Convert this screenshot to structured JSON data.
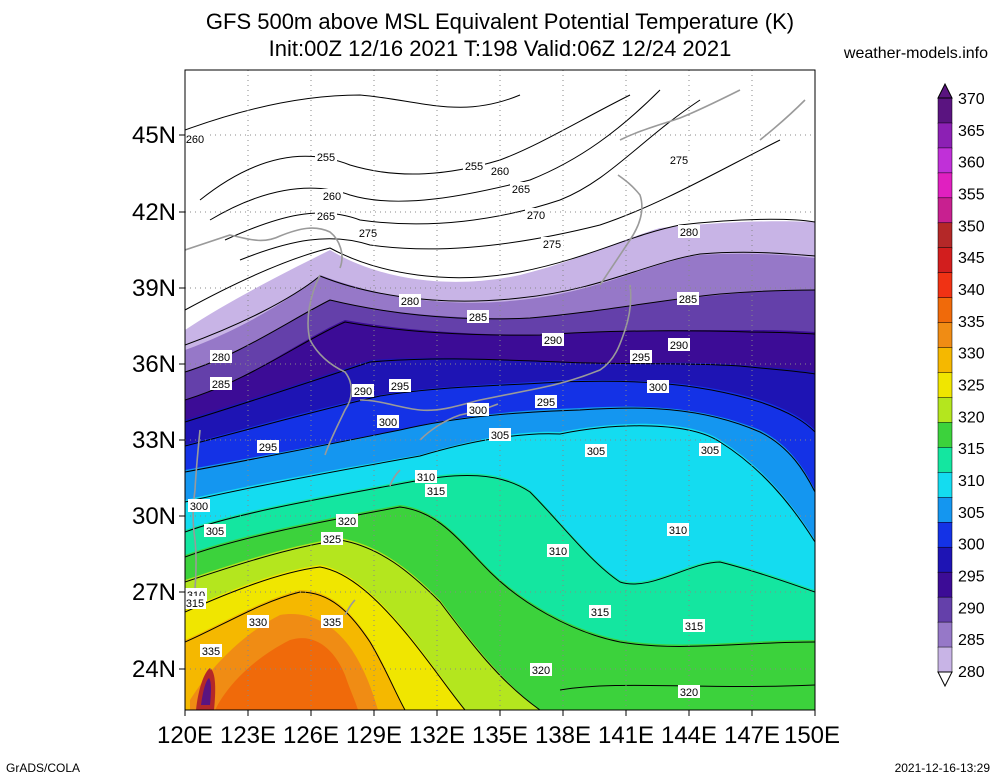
{
  "title": {
    "line1": "GFS 500m above MSL Equivalent Potential Temperature (K)",
    "line2": "Init:00Z 12/16 2021 T:198 Valid:06Z 12/24 2021"
  },
  "source": "weather-models.info",
  "footer": {
    "left": "GrADS/COLA",
    "right": "2021-12-16-13:29"
  },
  "axes": {
    "lat_ticks": [
      "45N",
      "42N",
      "39N",
      "36N",
      "33N",
      "30N",
      "27N",
      "24N"
    ],
    "lon_ticks": [
      "120E",
      "123E",
      "126E",
      "129E",
      "132E",
      "135E",
      "138E",
      "141E",
      "144E",
      "147E",
      "150E"
    ]
  },
  "colorbar": {
    "labels": [
      "370",
      "365",
      "360",
      "355",
      "350",
      "345",
      "340",
      "335",
      "330",
      "325",
      "320",
      "315",
      "310",
      "305",
      "300",
      "295",
      "290",
      "285",
      "280"
    ],
    "colors": [
      "#5a1480",
      "#8c20b4",
      "#c030d8",
      "#e020c0",
      "#c82090",
      "#b42828",
      "#d21e1e",
      "#f03214",
      "#f06a0a",
      "#f08c14",
      "#f5b800",
      "#f0e600",
      "#b4e61e",
      "#3cd23c",
      "#14e6a0",
      "#14dcf0",
      "#1496f0",
      "#1432e6",
      "#1e14b4",
      "#3c0c96",
      "#6440aa",
      "#9678c8",
      "#c8b4e6"
    ]
  },
  "contour_labels": [
    {
      "v": "260"
    },
    {
      "v": "255"
    },
    {
      "v": "255"
    },
    {
      "v": "260"
    },
    {
      "v": "260"
    },
    {
      "v": "265"
    },
    {
      "v": "265"
    },
    {
      "v": "275"
    },
    {
      "v": "270"
    },
    {
      "v": "275"
    },
    {
      "v": "275"
    },
    {
      "v": "280"
    },
    {
      "v": "280"
    },
    {
      "v": "285"
    },
    {
      "v": "285"
    },
    {
      "v": "290"
    },
    {
      "v": "290"
    },
    {
      "v": "280"
    },
    {
      "v": "285"
    },
    {
      "v": "290"
    },
    {
      "v": "295"
    },
    {
      "v": "295"
    },
    {
      "v": "300"
    },
    {
      "v": "300"
    },
    {
      "v": "295"
    },
    {
      "v": "300"
    },
    {
      "v": "305"
    },
    {
      "v": "305"
    },
    {
      "v": "305"
    },
    {
      "v": "295"
    },
    {
      "v": "310"
    },
    {
      "v": "315"
    },
    {
      "v": "300"
    },
    {
      "v": "305"
    },
    {
      "v": "320"
    },
    {
      "v": "325"
    },
    {
      "v": "310"
    },
    {
      "v": "310"
    },
    {
      "v": "310"
    },
    {
      "v": "315"
    },
    {
      "v": "315"
    },
    {
      "v": "315"
    },
    {
      "v": "330"
    },
    {
      "v": "335"
    },
    {
      "v": "335"
    },
    {
      "v": "320"
    },
    {
      "v": "320"
    }
  ]
}
